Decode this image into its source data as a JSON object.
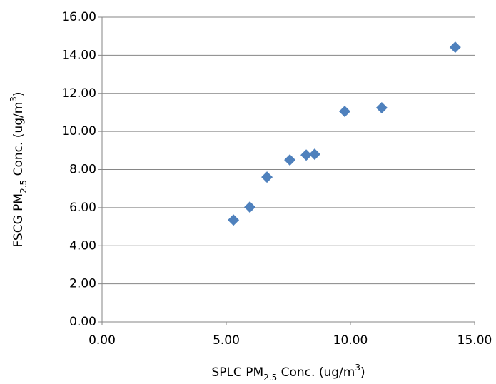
{
  "chart_data": {
    "type": "scatter",
    "xlabel": [
      "SPLC PM",
      "2.5",
      " Conc. (ug/m",
      "3",
      ")"
    ],
    "ylabel": [
      "FSCG PM",
      "2.5",
      " Conc. (ug/m",
      "3",
      ")"
    ],
    "color": "#4f81bd",
    "grid": true,
    "series": [
      {
        "x": [
          5.29,
          5.95,
          6.64,
          7.56,
          8.22,
          8.56,
          9.77,
          11.26,
          14.22
        ],
        "values": [
          5.35,
          6.03,
          7.6,
          8.5,
          8.76,
          8.8,
          11.05,
          11.24,
          14.42
        ]
      }
    ],
    "xlim": [
      0,
      15
    ],
    "xticks": [
      {
        "value": 0,
        "label": "0.00"
      },
      {
        "value": 5,
        "label": "5.00"
      },
      {
        "value": 10,
        "label": "10.00"
      },
      {
        "value": 15,
        "label": "15.00"
      }
    ],
    "ylim": [
      0,
      16
    ],
    "yticks": [
      {
        "value": 0,
        "label": "0.00"
      },
      {
        "value": 2,
        "label": "2.00"
      },
      {
        "value": 4,
        "label": "4.00"
      },
      {
        "value": 6,
        "label": "6.00"
      },
      {
        "value": 8,
        "label": "8.00"
      },
      {
        "value": 10,
        "label": "10.00"
      },
      {
        "value": 12,
        "label": "12.00"
      },
      {
        "value": 14,
        "label": "14.00"
      },
      {
        "value": 16,
        "label": "16.00"
      }
    ]
  }
}
